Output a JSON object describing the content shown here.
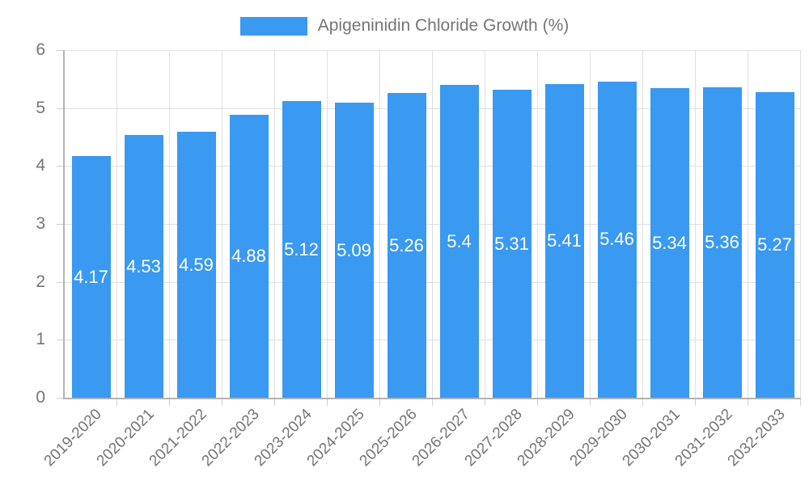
{
  "legend": {
    "swatch_color": "#3A99F0"
  },
  "chart_data": {
    "type": "bar",
    "title": "Apigeninidin Chloride Growth (%)",
    "xlabel": "",
    "ylabel": "",
    "categories": [
      "2019-2020",
      "2020-2021",
      "2021-2022",
      "2022-2023",
      "2023-2024",
      "2024-2025",
      "2025-2026",
      "2026-2027",
      "2027-2028",
      "2028-2029",
      "2029-2030",
      "2030-2031",
      "2031-2032",
      "2032-2033"
    ],
    "values": [
      4.17,
      4.53,
      4.59,
      4.88,
      5.12,
      5.09,
      5.26,
      5.4,
      5.31,
      5.41,
      5.46,
      5.34,
      5.36,
      5.27
    ],
    "value_labels": [
      "4.17",
      "4.53",
      "4.59",
      "4.88",
      "5.12",
      "5.09",
      "5.26",
      "5.4",
      "5.31",
      "5.41",
      "5.46",
      "5.34",
      "5.36",
      "5.27"
    ],
    "ylim": [
      0,
      6
    ],
    "yticks": [
      0,
      1,
      2,
      3,
      4,
      5,
      6
    ],
    "grid": true,
    "legend_position": "top",
    "bar_color": "#3A99F0",
    "value_label_color": "#ffffff",
    "grid_color": "#e0e0e0",
    "axis_color": "#b3b3b3",
    "tick_color": "#cfcfcf",
    "tick_label_color": "#757575"
  }
}
